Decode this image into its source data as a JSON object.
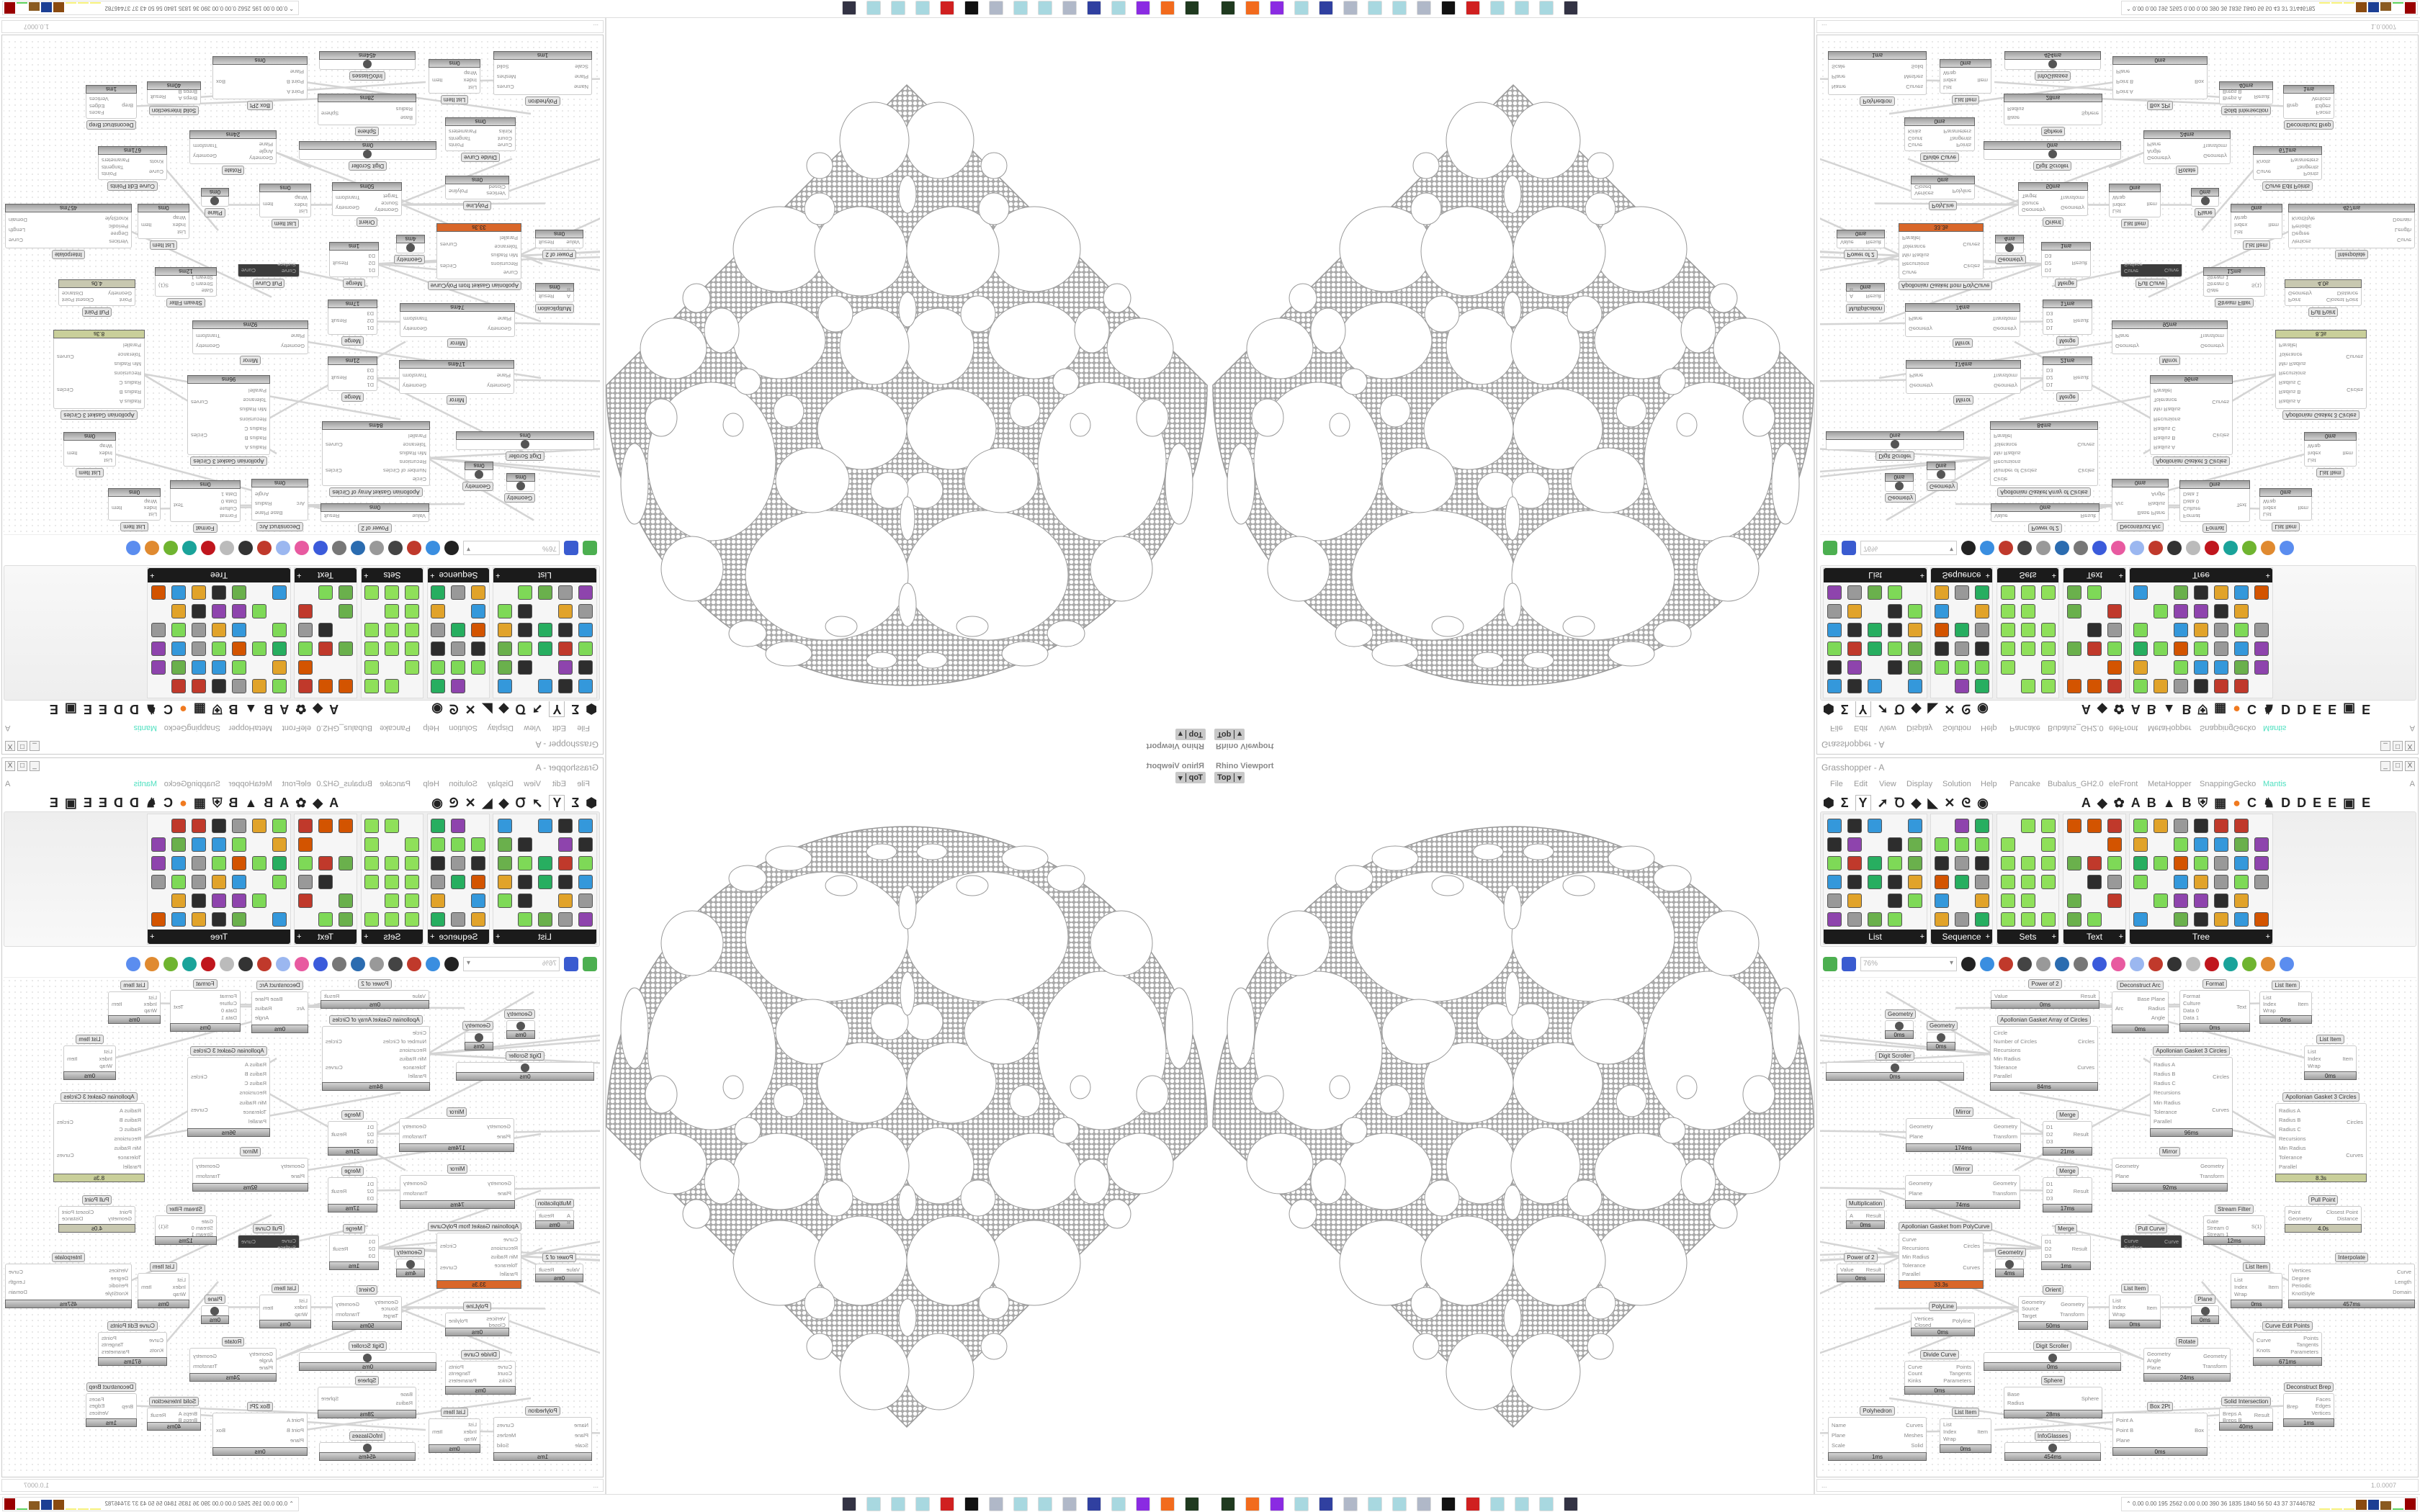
{
  "viewport": {
    "title": "Rhino Viewport",
    "view": "Top"
  },
  "grasshopper": {
    "title": "Grasshopper - A",
    "window_buttons": [
      "_",
      "□",
      "X"
    ],
    "menu": [
      "File",
      "Edit",
      "View",
      "Display",
      "Solution",
      "Help",
      "Pancake",
      "Bubalus_GH2.0",
      "eleFront",
      "MetaHopper",
      "SnappingGecko",
      "Mantis"
    ],
    "menu_right": "A",
    "accent_menu_color": "#4fe0c0",
    "tabs": [
      "⬢",
      "Σ",
      "Y",
      "➚",
      "Ꝺ",
      "◆",
      "◣",
      "✕",
      "ᘓ",
      "◉",
      "A",
      "◆",
      "✿",
      "A",
      "B",
      "▲",
      "B",
      "⛨",
      "▦",
      "●",
      "C",
      "♞",
      "D",
      "D",
      "E",
      "E",
      "▣",
      "E"
    ],
    "selected_tab": 2,
    "panels": [
      {
        "label": "List"
      },
      {
        "label": "Sequence"
      },
      {
        "label": "Sets"
      },
      {
        "label": "Text"
      },
      {
        "label": "Tree"
      }
    ],
    "zoom": "76%",
    "status_left": "...",
    "version": "1.0.0007",
    "nodes": [
      {
        "title": "Power of 2",
        "time": "0ms",
        "in": [
          "Value"
        ],
        "out": [
          "Result"
        ]
      },
      {
        "title": "Apollonian Gasket Array of Circles",
        "time": "84ms",
        "in": [
          "Circle",
          "Number of Circles",
          "Recursions",
          "Min Radius",
          "Tolerance",
          "Parallel"
        ],
        "out": [
          "Circles",
          "Curves"
        ]
      },
      {
        "title": "Deconstruct Arc",
        "time": "0ms",
        "in": [
          "Arc"
        ],
        "out": [
          "Base Plane",
          "Radius",
          "Angle"
        ]
      },
      {
        "title": "Format",
        "time": "0ms",
        "in": [
          "Format",
          "Culture",
          "Data 0",
          "Data 1"
        ],
        "out": [
          "Text"
        ]
      },
      {
        "title": "List Item",
        "time": "0ms",
        "in": [
          "List",
          "Index",
          "Wrap"
        ],
        "out": [
          "Item"
        ]
      },
      {
        "title": "Geometry",
        "time": "0ms",
        "in": [],
        "out": []
      },
      {
        "title": "Geometry",
        "time": "0ms",
        "in": [],
        "out": []
      },
      {
        "title": "Digit Scroller",
        "time": "0ms",
        "in": [],
        "out": []
      },
      {
        "title": "Apollonian Gasket 3 Circles",
        "time": "96ms",
        "in": [
          "Radius A",
          "Radius B",
          "Radius C",
          "Recursions",
          "Min Radius",
          "Tolerance",
          "Parallel"
        ],
        "out": [
          "Circles",
          "Curves"
        ]
      },
      {
        "title": "List Item",
        "time": "0ms",
        "in": [
          "List",
          "Index",
          "Wrap"
        ],
        "out": [
          "Item"
        ]
      },
      {
        "title": "Apollonian Gasket 3 Circles",
        "time": "8.3s",
        "status": "warm",
        "in": [
          "Radius A",
          "Radius B",
          "Radius C",
          "Recursions",
          "Min Radius",
          "Tolerance",
          "Parallel"
        ],
        "out": [
          "Circles",
          "Curves"
        ]
      },
      {
        "title": "Mirror",
        "time": "174ms",
        "in": [
          "Geometry",
          "Plane"
        ],
        "out": [
          "Geometry",
          "Transform"
        ]
      },
      {
        "title": "Merge",
        "time": "21ms",
        "in": [
          "D1",
          "D2",
          "D3"
        ],
        "out": [
          "Result"
        ]
      },
      {
        "title": "Mirror",
        "time": "74ms",
        "in": [
          "Geometry",
          "Plane"
        ],
        "out": [
          "Geometry",
          "Transform"
        ]
      },
      {
        "title": "Merge",
        "time": "17ms",
        "in": [
          "D1",
          "D2",
          "D3"
        ],
        "out": [
          "Result"
        ]
      },
      {
        "title": "Mirror",
        "time": "92ms",
        "in": [
          "Geometry",
          "Plane"
        ],
        "out": [
          "Geometry",
          "Transform"
        ]
      },
      {
        "title": "Multiplication",
        "time": "0ms",
        "in": [
          "A",
          "B"
        ],
        "out": [
          "Result"
        ]
      },
      {
        "title": "Pull Point",
        "time": "4.0s",
        "status": "warm2",
        "in": [
          "Point",
          "Geometry"
        ],
        "out": [
          "Closest Point",
          "Distance"
        ]
      },
      {
        "title": "Stream Filter",
        "time": "12ms",
        "in": [
          "Gate",
          "Stream 0",
          "Stream 1"
        ],
        "out": [
          "S(1)"
        ]
      },
      {
        "title": "Apollonian Gasket from PolyCurve",
        "time": "33.3s",
        "status": "hot",
        "in": [
          "Curve",
          "Recursions",
          "Min Radius",
          "Tolerance",
          "Parallel"
        ],
        "out": [
          "Circles",
          "Curves"
        ]
      },
      {
        "title": "Power of 2",
        "time": "0ms",
        "in": [
          "Value"
        ],
        "out": [
          "Result"
        ]
      },
      {
        "title": "Geometry",
        "time": "4ms",
        "in": [],
        "out": []
      },
      {
        "title": "Merge",
        "time": "1ms",
        "in": [
          "D1",
          "D2",
          "D3"
        ],
        "out": [
          "Result"
        ]
      },
      {
        "title": "Pull Curve",
        "time": "",
        "status": "dark",
        "in": [
          "Curve",
          "Surface"
        ],
        "out": [
          "Curve"
        ]
      },
      {
        "title": "Interpolate",
        "time": "457ms",
        "in": [
          "Vertices",
          "Degree",
          "Periodic",
          "KnotStyle"
        ],
        "out": [
          "Curve",
          "Length",
          "Domain"
        ]
      },
      {
        "title": "List Item",
        "time": "0ms",
        "in": [
          "List",
          "Index",
          "Wrap"
        ],
        "out": [
          "Item"
        ]
      },
      {
        "title": "PolyLine",
        "time": "0ms",
        "in": [
          "Vertices",
          "Closed"
        ],
        "out": [
          "Polyline"
        ]
      },
      {
        "title": "Orient",
        "time": "50ms",
        "in": [
          "Geometry",
          "Source",
          "Target"
        ],
        "out": [
          "Geometry",
          "Transform"
        ]
      },
      {
        "title": "List Item",
        "time": "0ms",
        "in": [
          "List",
          "Index",
          "Wrap"
        ],
        "out": [
          "Item"
        ]
      },
      {
        "title": "Plane",
        "time": "0ms",
        "in": [],
        "out": []
      },
      {
        "title": "Curve Edit Points",
        "time": "671ms",
        "in": [
          "Curve",
          "Knots"
        ],
        "out": [
          "Points",
          "Tangents",
          "Parameters"
        ]
      },
      {
        "title": "Digit Scroller",
        "time": "0ms",
        "in": [],
        "out": []
      },
      {
        "title": "Divide Curve",
        "time": "0ms",
        "in": [
          "Curve",
          "Count",
          "Kinks"
        ],
        "out": [
          "Points",
          "Tangents",
          "Parameters"
        ]
      },
      {
        "title": "Rotate",
        "time": "24ms",
        "in": [
          "Geometry",
          "Angle",
          "Plane"
        ],
        "out": [
          "Geometry",
          "Transform"
        ]
      },
      {
        "title": "Sphere",
        "time": "28ms",
        "in": [
          "Base",
          "Radius"
        ],
        "out": [
          "Sphere"
        ]
      },
      {
        "title": "Deconstruct Brep",
        "time": "1ms",
        "in": [
          "Brep"
        ],
        "out": [
          "Faces",
          "Edges",
          "Vertices"
        ]
      },
      {
        "title": "Solid Intersection",
        "time": "40ms",
        "in": [
          "Breps A",
          "Breps B"
        ],
        "out": [
          "Result"
        ]
      },
      {
        "title": "Polyhedron",
        "time": "1ms",
        "in": [
          "Name",
          "Plane",
          "Scale"
        ],
        "out": [
          "Curves",
          "Meshes",
          "Solid"
        ]
      },
      {
        "title": "List Item",
        "time": "0ms",
        "in": [
          "List",
          "Index",
          "Wrap"
        ],
        "out": [
          "Item"
        ]
      },
      {
        "title": "InfoGlasses",
        "time": "454ms",
        "in": [],
        "out": []
      },
      {
        "title": "Box 2Pt",
        "time": "0ms",
        "in": [
          "Point A",
          "Point B",
          "Plane"
        ],
        "out": [
          "Box"
        ]
      }
    ],
    "status_colors": {
      "hot": "#d9672a",
      "warm": "#c9cf9a",
      "warm2": "#c8c8b0",
      "dark": "#3c3c3c"
    }
  },
  "taskbar": {
    "icons": [
      "terminal-icon",
      "firefox-icon",
      "purple-app-icon",
      "notepad-icon",
      "floppy-64-icon",
      "scroll-icon",
      "notepad-icon",
      "notepad-icon",
      "scroll-icon",
      "wolf-icon",
      "red-app-icon",
      "notepad-icon",
      "notepad-icon",
      "notepad-icon",
      "monitor-icon"
    ],
    "tray_text": "0.00 0.00 195 2562 0.00 0.00 390 36 1835 1840 56 50 43 37 37446782"
  }
}
